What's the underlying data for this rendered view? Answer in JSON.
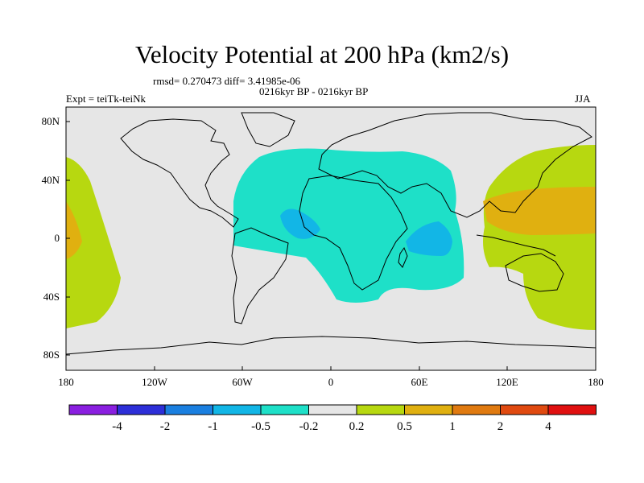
{
  "title": "Velocity Potential at 200 hPa (km2/s)",
  "stats_line": "rmsd= 0.270473 diff= 3.41985e-06",
  "subtitle": "0216kyr BP - 0216kyr BP",
  "left_label": "Expt = teiTk-teiNk",
  "right_label": "JJA",
  "map": {
    "lon_ticks": [
      "180",
      "120W",
      "60W",
      "0",
      "60E",
      "120E",
      "180"
    ],
    "lat_ticks": [
      "80N",
      "40N",
      "0",
      "40S",
      "80S"
    ],
    "background_color": "#e6e6e6"
  },
  "colorbar": {
    "colors": [
      "#8a1fe0",
      "#2d2fd8",
      "#1a7fe0",
      "#12b6e6",
      "#1ee0c8",
      "#e6e6e6",
      "#b7d810",
      "#e0b010",
      "#e07a10",
      "#e04a10",
      "#e01010"
    ],
    "labels": [
      "-4",
      "-2",
      "-1",
      "-0.5",
      "-0.2",
      "0.2",
      "0.5",
      "1",
      "2",
      "4"
    ]
  }
}
